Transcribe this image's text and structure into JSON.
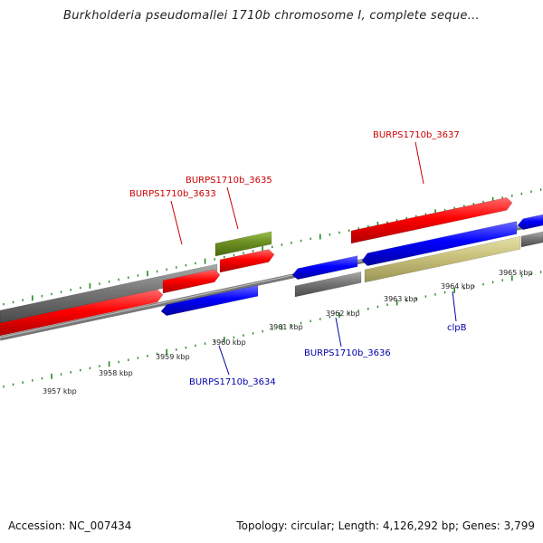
{
  "title": "Burkholderia pseudomallei 1710b chromosome I, complete seque...",
  "footer": {
    "accession": "Accession: NC_007434",
    "summary": "Topology: circular; Length: 4,126,292 bp; Genes: 3,799"
  },
  "colors": {
    "forward_gene": "#ff0000",
    "reverse_gene": "#0000ff",
    "gray_track": "#777777",
    "olive_gene": "#6b8e23",
    "khaki_gene": "#c8c07a",
    "tick": "#228b22",
    "label_red": "#cc0000",
    "label_blue": "#0000aa"
  },
  "scale_labels": [
    "3957 kbp",
    "3958 kbp",
    "3959 kbp",
    "3960 kbp",
    "3961 kbp",
    "3962 kbp",
    "3963 kbp",
    "3964 kbp",
    "3965 kbp"
  ],
  "gene_labels": [
    {
      "text": "BURPS1710b_3637",
      "strand": "forward"
    },
    {
      "text": "BURPS1710b_3635",
      "strand": "forward"
    },
    {
      "text": "BURPS1710b_3633",
      "strand": "forward"
    },
    {
      "text": "BURPS1710b_3636",
      "strand": "reverse"
    },
    {
      "text": "BURPS1710b_3634",
      "strand": "reverse"
    },
    {
      "text": "clpB",
      "strand": "reverse"
    }
  ]
}
